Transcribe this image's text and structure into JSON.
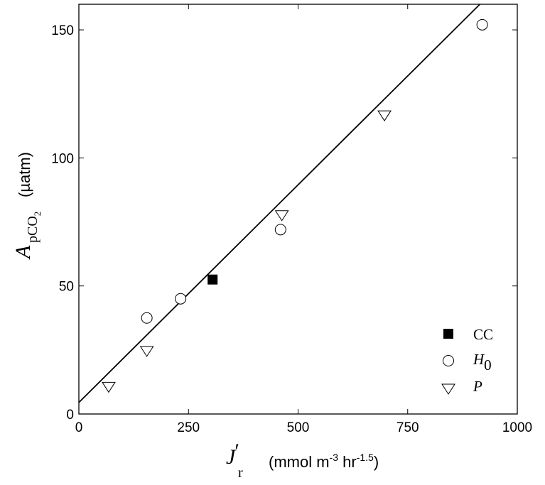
{
  "chart_data": {
    "type": "scatter",
    "xlim": [
      0,
      1000
    ],
    "ylim": [
      0,
      160
    ],
    "xticks": [
      0,
      250,
      500,
      750,
      1000
    ],
    "yticks": [
      0,
      50,
      100,
      150
    ],
    "grid": false,
    "legend_position": "bottom-right",
    "xlabel": {
      "symbol": "J",
      "subscript": "r",
      "prime": "′",
      "units_prefix": "(mmol m",
      "units_exp1": "-3",
      "units_mid": " hr",
      "units_exp2": "-1.5",
      "units_suffix": ")"
    },
    "ylabel": {
      "symbol": "A",
      "sub_main": "pCO",
      "sub_sub": "2",
      "units": "(µatm)"
    },
    "fit_line": {
      "x": [
        0,
        1000
      ],
      "y": [
        4.5,
        174.5
      ]
    },
    "series": [
      {
        "name": "CC",
        "sub": "",
        "marker": "filled-square",
        "points": [
          [
            305,
            52.5
          ]
        ]
      },
      {
        "name": "H",
        "sub": "0",
        "marker": "open-circle",
        "points": [
          [
            155,
            37.5
          ],
          [
            232,
            45
          ],
          [
            460,
            72
          ],
          [
            920,
            152
          ]
        ]
      },
      {
        "name": "P",
        "sub": "",
        "marker": "open-triangle-down",
        "points": [
          [
            68,
            11
          ],
          [
            155,
            25
          ],
          [
            463,
            78
          ],
          [
            697,
            117
          ]
        ]
      }
    ]
  }
}
